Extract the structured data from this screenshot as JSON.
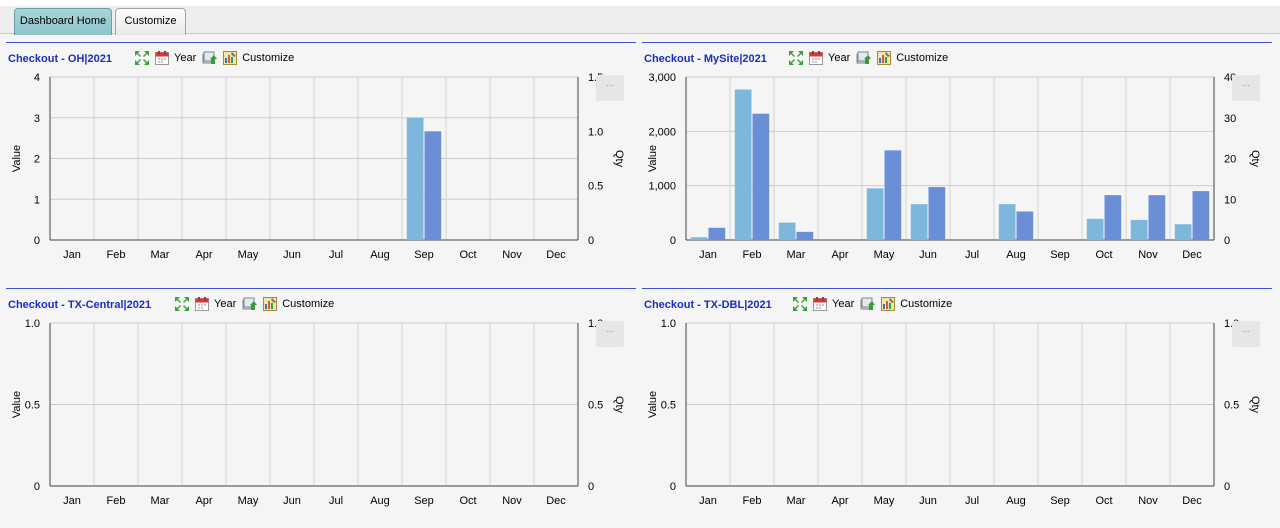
{
  "tabs": [
    {
      "label": "Dashboard Home",
      "active": true
    },
    {
      "label": "Customize",
      "active": false
    }
  ],
  "toolbar": {
    "year_label": "Year",
    "customize_label": "Customize",
    "more_label": "..."
  },
  "colors": {
    "value_bar": "#7db8dc",
    "qty_bar": "#6a8fd6",
    "title": "#1a2ec0",
    "rule": "#3f51d1"
  },
  "panels": [
    {
      "id": "oh",
      "title": "Checkout - OH|2021",
      "chart_data": {
        "type": "bar",
        "categories": [
          "Jan",
          "Feb",
          "Mar",
          "Apr",
          "May",
          "Jun",
          "Jul",
          "Aug",
          "Sep",
          "Oct",
          "Nov",
          "Dec"
        ],
        "series": [
          {
            "axis": "left",
            "values": [
              0,
              0,
              0,
              0,
              0,
              0,
              0,
              0,
              3,
              0,
              0,
              0
            ]
          },
          {
            "axis": "right",
            "values": [
              0,
              0,
              0,
              0,
              0,
              0,
              0,
              0,
              1,
              0,
              0,
              0
            ]
          }
        ],
        "ylabel": "Value",
        "y2label": "Qty",
        "ylim": [
          0,
          4
        ],
        "y2lim": [
          0,
          1.5
        ],
        "yticks": [
          "0",
          "1",
          "2",
          "3",
          "4"
        ],
        "y2ticks": [
          "0",
          "0.5",
          "1.0",
          "1.5"
        ],
        "grid": true
      }
    },
    {
      "id": "mysite",
      "title": "Checkout - MySite|2021",
      "chart_data": {
        "type": "bar",
        "categories": [
          "Jan",
          "Feb",
          "Mar",
          "Apr",
          "May",
          "Jun",
          "Jul",
          "Aug",
          "Sep",
          "Oct",
          "Nov",
          "Dec"
        ],
        "series": [
          {
            "axis": "left",
            "values": [
              50,
              2770,
              320,
              0,
              950,
              660,
              0,
              660,
              0,
              390,
              370,
              290
            ]
          },
          {
            "axis": "right",
            "values": [
              3,
              31,
              2,
              0,
              22,
              13,
              0,
              7,
              0,
              11,
              11,
              12
            ]
          }
        ],
        "ylabel": "Value",
        "y2label": "Qty",
        "ylim": [
          0,
          3000
        ],
        "y2lim": [
          0,
          40
        ],
        "yticks": [
          "0",
          "1,000",
          "2,000",
          "3,000"
        ],
        "y2ticks": [
          "0",
          "10",
          "20",
          "30",
          "40"
        ],
        "grid": true
      }
    },
    {
      "id": "txcentral",
      "title": "Checkout - TX-Central|2021",
      "chart_data": {
        "type": "bar",
        "categories": [
          "Jan",
          "Feb",
          "Mar",
          "Apr",
          "May",
          "Jun",
          "Jul",
          "Aug",
          "Sep",
          "Oct",
          "Nov",
          "Dec"
        ],
        "series": [
          {
            "axis": "left",
            "values": [
              0,
              0,
              0,
              0,
              0,
              0,
              0,
              0,
              0,
              0,
              0,
              0
            ]
          },
          {
            "axis": "right",
            "values": [
              0,
              0,
              0,
              0,
              0,
              0,
              0,
              0,
              0,
              0,
              0,
              0
            ]
          }
        ],
        "ylabel": "Value",
        "y2label": "Qty",
        "ylim": [
          0,
          1
        ],
        "y2lim": [
          0,
          1
        ],
        "yticks": [
          "0",
          "0.5",
          "1.0"
        ],
        "y2ticks": [
          "0",
          "0.5",
          "1.0"
        ],
        "grid": true
      }
    },
    {
      "id": "txdbl",
      "title": "Checkout - TX-DBL|2021",
      "chart_data": {
        "type": "bar",
        "categories": [
          "Jan",
          "Feb",
          "Mar",
          "Apr",
          "May",
          "Jun",
          "Jul",
          "Aug",
          "Sep",
          "Oct",
          "Nov",
          "Dec"
        ],
        "series": [
          {
            "axis": "left",
            "values": [
              0,
              0,
              0,
              0,
              0,
              0,
              0,
              0,
              0,
              0,
              0,
              0
            ]
          },
          {
            "axis": "right",
            "values": [
              0,
              0,
              0,
              0,
              0,
              0,
              0,
              0,
              0,
              0,
              0,
              0
            ]
          }
        ],
        "ylabel": "Value",
        "y2label": "Qty",
        "ylim": [
          0,
          1
        ],
        "y2lim": [
          0,
          1
        ],
        "yticks": [
          "0",
          "0.5",
          "1.0"
        ],
        "y2ticks": [
          "0",
          "0.5",
          "1.0"
        ],
        "grid": true
      }
    }
  ]
}
